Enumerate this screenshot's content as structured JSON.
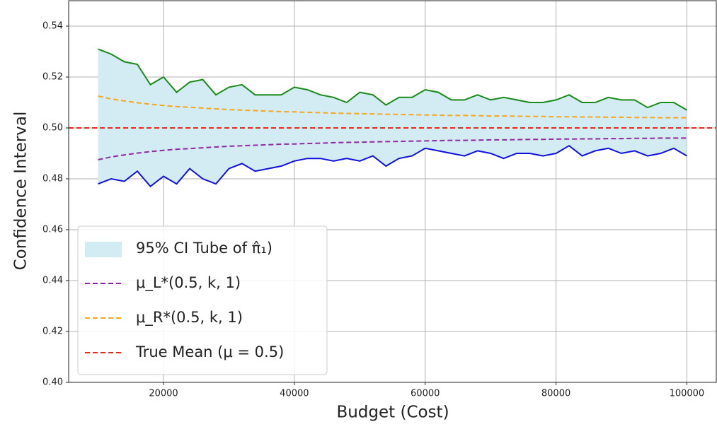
{
  "chart_data": {
    "type": "line",
    "xlabel": "Budget (Cost)",
    "ylabel": "Confidence Interval",
    "x": [
      10000,
      12000,
      14000,
      16000,
      18000,
      20000,
      22000,
      24000,
      26000,
      28000,
      30000,
      32000,
      34000,
      36000,
      38000,
      40000,
      42000,
      44000,
      46000,
      48000,
      50000,
      52000,
      54000,
      56000,
      58000,
      60000,
      62000,
      64000,
      66000,
      68000,
      70000,
      72000,
      74000,
      76000,
      78000,
      80000,
      82000,
      84000,
      86000,
      88000,
      90000,
      92000,
      94000,
      96000,
      98000,
      100000
    ],
    "band": {
      "name": "95% CI Tube of π̂₁)",
      "fill": "#d3ebf2",
      "upper": {
        "color": "#1a8a1a",
        "values": [
          0.531,
          0.529,
          0.526,
          0.525,
          0.517,
          0.52,
          0.514,
          0.518,
          0.519,
          0.513,
          0.516,
          0.517,
          0.513,
          0.513,
          0.513,
          0.516,
          0.515,
          0.513,
          0.512,
          0.51,
          0.514,
          0.513,
          0.509,
          0.512,
          0.512,
          0.515,
          0.514,
          0.511,
          0.511,
          0.513,
          0.511,
          0.512,
          0.511,
          0.51,
          0.51,
          0.511,
          0.513,
          0.51,
          0.51,
          0.512,
          0.511,
          0.511,
          0.508,
          0.51,
          0.51,
          0.507
        ]
      },
      "lower": {
        "color": "#1010e0",
        "values": [
          0.478,
          0.48,
          0.479,
          0.483,
          0.477,
          0.481,
          0.478,
          0.484,
          0.48,
          0.478,
          0.484,
          0.486,
          0.483,
          0.484,
          0.485,
          0.487,
          0.488,
          0.488,
          0.487,
          0.488,
          0.487,
          0.489,
          0.485,
          0.488,
          0.489,
          0.492,
          0.491,
          0.49,
          0.489,
          0.491,
          0.49,
          0.488,
          0.49,
          0.49,
          0.489,
          0.49,
          0.493,
          0.489,
          0.491,
          0.492,
          0.49,
          0.491,
          0.489,
          0.49,
          0.492,
          0.489
        ]
      }
    },
    "series": [
      {
        "name": "μ_L*(0.5, k, 1)",
        "color": "#8e2aa6",
        "dashed": true,
        "values": [
          0.4875,
          0.4886,
          0.4894,
          0.4901,
          0.4907,
          0.4912,
          0.4916,
          0.4919,
          0.4922,
          0.4925,
          0.4928,
          0.493,
          0.4932,
          0.4934,
          0.4936,
          0.4937,
          0.4939,
          0.494,
          0.4942,
          0.4943,
          0.4944,
          0.4945,
          0.4946,
          0.4947,
          0.4948,
          0.4949,
          0.495,
          0.4951,
          0.4951,
          0.4952,
          0.4953,
          0.4953,
          0.4954,
          0.4955,
          0.4955,
          0.4956,
          0.4956,
          0.4957,
          0.4957,
          0.4958,
          0.4958,
          0.4959,
          0.4959,
          0.496,
          0.496,
          0.496
        ]
      },
      {
        "name": "μ_R*(0.5, k, 1)",
        "color": "#f5a623",
        "dashed": true,
        "values": [
          0.5125,
          0.5114,
          0.5106,
          0.5099,
          0.5093,
          0.5088,
          0.5084,
          0.5081,
          0.5078,
          0.5075,
          0.5072,
          0.507,
          0.5068,
          0.5066,
          0.5064,
          0.5063,
          0.5061,
          0.506,
          0.5058,
          0.5057,
          0.5056,
          0.5055,
          0.5054,
          0.5053,
          0.5052,
          0.5051,
          0.505,
          0.5049,
          0.5049,
          0.5048,
          0.5047,
          0.5047,
          0.5046,
          0.5045,
          0.5045,
          0.5044,
          0.5044,
          0.5043,
          0.5043,
          0.5042,
          0.5042,
          0.5041,
          0.5041,
          0.504,
          0.504,
          0.504
        ]
      }
    ],
    "hline": {
      "name": "True Mean (μ = 0.5)",
      "value": 0.5,
      "color": "#e8291c",
      "dashed": true
    },
    "xlim": [
      5500,
      104500
    ],
    "ylim": [
      0.4,
      0.55
    ],
    "xticks": [
      20000,
      40000,
      60000,
      80000,
      100000
    ],
    "yticks": [
      {
        "value": 0.4,
        "label": "0.40"
      },
      0.42,
      0.44,
      0.46,
      0.48,
      {
        "value": 0.5,
        "label": "0.50"
      },
      0.52,
      0.54
    ],
    "grid": true,
    "legend": "lower left"
  }
}
